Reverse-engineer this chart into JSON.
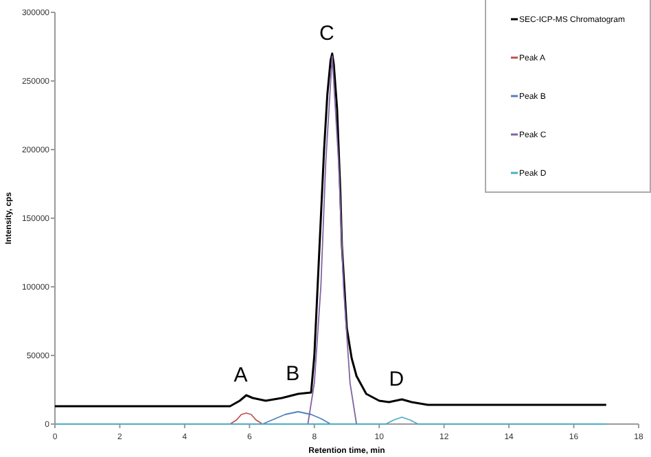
{
  "chart_data": {
    "type": "line",
    "xlabel": "Retention time, min",
    "ylabel": "Intensity, cps",
    "xlim": [
      0,
      18
    ],
    "xticks": [
      0,
      2,
      4,
      6,
      8,
      10,
      12,
      14,
      16,
      18
    ],
    "ylim": [
      0,
      300000
    ],
    "yticks": [
      0,
      50000,
      100000,
      150000,
      200000,
      250000,
      300000
    ],
    "grid": false,
    "legend": "top right",
    "marker": "none",
    "line_style": "solid",
    "annotations": [
      {
        "text": "A",
        "x": 5.9,
        "y": 21000
      },
      {
        "text": "B",
        "x": 7.5,
        "y": 22000
      },
      {
        "text": "C",
        "x": 8.55,
        "y": 270000
      },
      {
        "text": "D",
        "x": 10.7,
        "y": 18000
      }
    ],
    "series": [
      {
        "name": "SEC-ICP-MS Chromatogram",
        "color": "#000000",
        "x": [
          0,
          5.4,
          5.7,
          5.9,
          6.1,
          6.5,
          7.0,
          7.5,
          7.9,
          8.0,
          8.1,
          8.2,
          8.3,
          8.4,
          8.5,
          8.55,
          8.6,
          8.7,
          8.8,
          8.85,
          9.0,
          9.15,
          9.3,
          9.6,
          10.0,
          10.3,
          10.7,
          11.0,
          11.5,
          12,
          17
        ],
        "values": [
          13000,
          13000,
          17000,
          21000,
          19000,
          17000,
          19000,
          22000,
          23000,
          50000,
          100000,
          150000,
          200000,
          240000,
          265000,
          270000,
          262000,
          230000,
          170000,
          130000,
          70000,
          48000,
          35000,
          22000,
          17000,
          16000,
          18000,
          16000,
          14000,
          14000,
          14000
        ]
      },
      {
        "name": "Peak A",
        "color": "#c0504d",
        "x": [
          5.4,
          5.6,
          5.75,
          5.9,
          6.05,
          6.2,
          6.4
        ],
        "values": [
          0,
          3000,
          7000,
          8000,
          7000,
          3000,
          0
        ]
      },
      {
        "name": "Peak B",
        "color": "#4f81bd",
        "x": [
          6.4,
          6.8,
          7.1,
          7.5,
          7.9,
          8.2,
          8.5
        ],
        "values": [
          0,
          4000,
          7000,
          9000,
          7000,
          4000,
          0
        ]
      },
      {
        "name": "Peak C",
        "color": "#8064a2",
        "x": [
          7.8,
          8.0,
          8.2,
          8.35,
          8.55,
          8.75,
          8.9,
          9.1,
          9.3
        ],
        "values": [
          0,
          30000,
          100000,
          190000,
          268000,
          190000,
          100000,
          30000,
          0
        ]
      },
      {
        "name": "Peak D",
        "color": "#4bacc6",
        "x": [
          0,
          10.2,
          10.45,
          10.7,
          10.95,
          11.2,
          17
        ],
        "values": [
          0,
          0,
          3000,
          5000,
          3000,
          0,
          0
        ]
      }
    ]
  }
}
